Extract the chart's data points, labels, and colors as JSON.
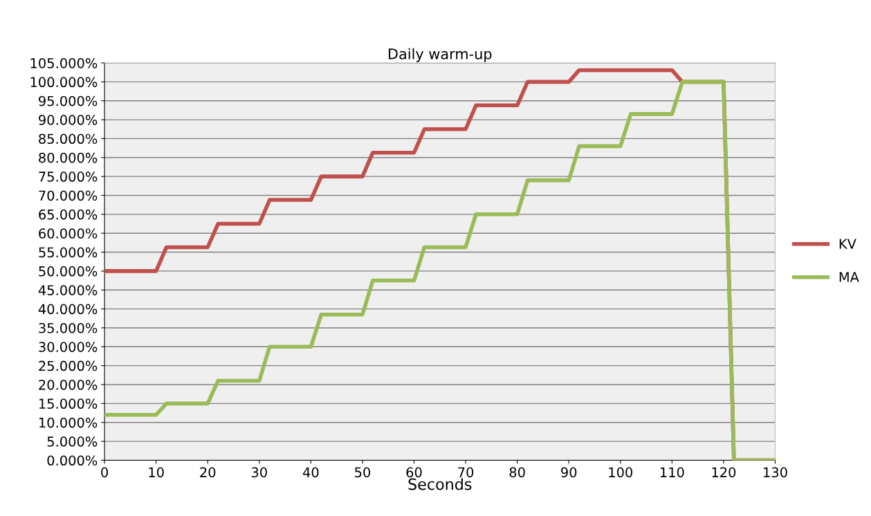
{
  "chart_data": {
    "type": "line",
    "title": "Daily warm-up",
    "xlabel": "Seconds",
    "x": [
      0,
      10,
      12,
      20,
      22,
      30,
      32,
      40,
      42,
      50,
      52,
      60,
      62,
      70,
      72,
      80,
      82,
      90,
      92,
      100,
      102,
      110,
      112,
      120,
      122,
      130
    ],
    "series": [
      {
        "name": "KV",
        "color": "#c0504d",
        "values": [
          50,
          50,
          56.3,
          56.3,
          62.5,
          62.5,
          68.8,
          68.8,
          75,
          75,
          81.3,
          81.3,
          87.5,
          87.5,
          93.8,
          93.8,
          100,
          100,
          103.1,
          103.1,
          103.1,
          103.1,
          100,
          100,
          0,
          0
        ]
      },
      {
        "name": "MA",
        "color": "#9bbb59",
        "values": [
          12,
          12,
          15,
          15,
          21,
          21,
          30,
          30,
          38.5,
          38.5,
          47.5,
          47.5,
          56.3,
          56.3,
          65,
          65,
          74,
          74,
          83,
          83,
          91.5,
          91.5,
          100,
          100,
          0,
          0
        ]
      }
    ],
    "xlim": [
      0,
      130
    ],
    "xticks": [
      0,
      10,
      20,
      30,
      40,
      50,
      60,
      70,
      80,
      90,
      100,
      110,
      120,
      130
    ],
    "ylim": [
      0,
      105
    ],
    "yticks": [
      {
        "value": 0,
        "label": "0.000%"
      },
      {
        "value": 5,
        "label": "5.000%"
      },
      {
        "value": 10,
        "label": "10.000%"
      },
      {
        "value": 15,
        "label": "15.000%"
      },
      {
        "value": 20,
        "label": "20.000%"
      },
      {
        "value": 25,
        "label": "25.000%"
      },
      {
        "value": 30,
        "label": "30.000%"
      },
      {
        "value": 35,
        "label": "35.000%"
      },
      {
        "value": 40,
        "label": "40.000%"
      },
      {
        "value": 45,
        "label": "45.000%"
      },
      {
        "value": 50,
        "label": "50.000%"
      },
      {
        "value": 55,
        "label": "55.000%"
      },
      {
        "value": 60,
        "label": "60.000%"
      },
      {
        "value": 65,
        "label": "65.000%"
      },
      {
        "value": 70,
        "label": "70.000%"
      },
      {
        "value": 75,
        "label": "75.000%"
      },
      {
        "value": 80,
        "label": "80.000%"
      },
      {
        "value": 85,
        "label": "85.000%"
      },
      {
        "value": 90,
        "label": "90.000%"
      },
      {
        "value": 95,
        "label": "95.000%"
      },
      {
        "value": 100,
        "label": "100.000%"
      },
      {
        "value": 105,
        "label": "105.000%"
      }
    ],
    "grid": "y",
    "legend": "right",
    "marker": "none",
    "line_style": "solid"
  }
}
